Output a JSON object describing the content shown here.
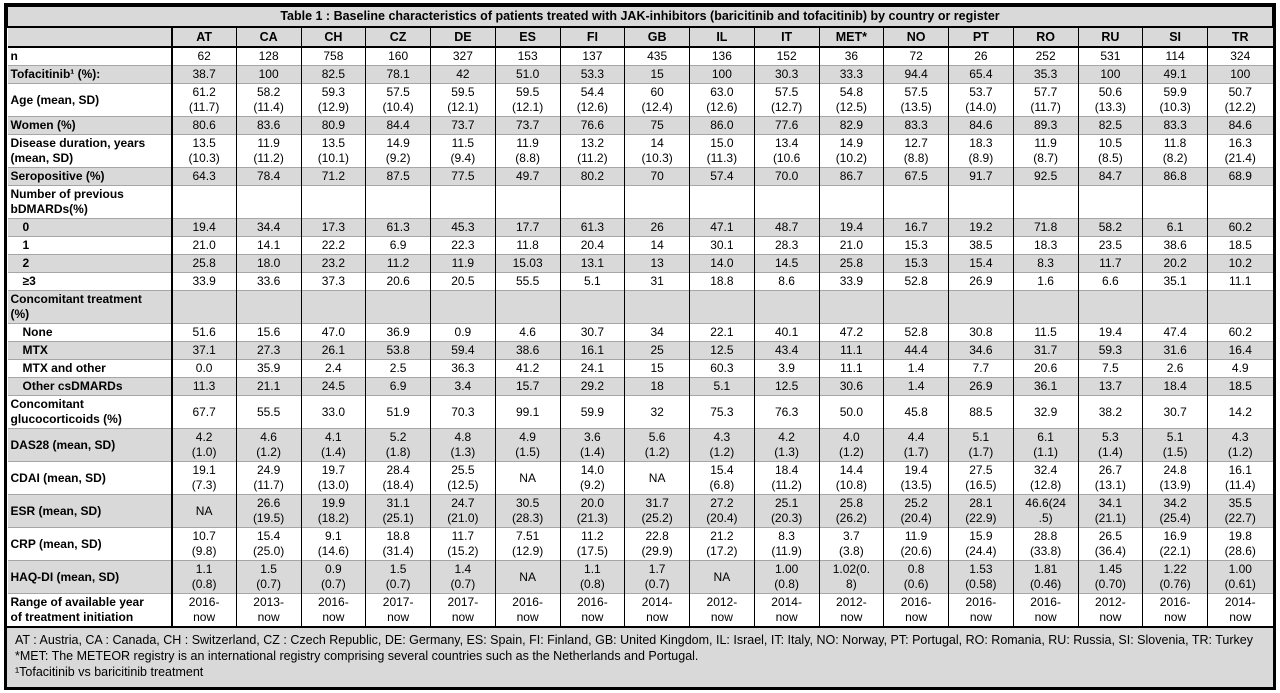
{
  "title": "Table 1 : Baseline characteristics of patients treated with JAK-inhibitors (baricitinib and tofacitinib) by country or register",
  "colors": {
    "shade": "#d9d9d9",
    "border": "#000000"
  },
  "table": {
    "columns": [
      "AT",
      "CA",
      "CH",
      "CZ",
      "DE",
      "ES",
      "FI",
      "GB",
      "IL",
      "IT",
      "MET*",
      "NO",
      "PT",
      "RO",
      "RU",
      "SI",
      "TR"
    ],
    "rows": [
      {
        "label": "n",
        "indent": false,
        "values": [
          "62",
          "128",
          "758",
          "160",
          "327",
          "153",
          "137",
          "435",
          "136",
          "152",
          "36",
          "72",
          "26",
          "252",
          "531",
          "114",
          "324"
        ]
      },
      {
        "label": "Tofacitinib¹ (%):",
        "indent": false,
        "values": [
          "38.7",
          "100",
          "82.5",
          "78.1",
          "42",
          "51.0",
          "53.3",
          "15",
          "100",
          "30.3",
          "33.3",
          "94.4",
          "65.4",
          "35.3",
          "100",
          "49.1",
          "100"
        ]
      },
      {
        "label": "Age (mean, SD)",
        "indent": false,
        "values": [
          "61.2\n(11.7)",
          "58.2\n(11.4)",
          "59.3\n(12.9)",
          "57.5\n(10.4)",
          "59.5\n(12.1)",
          "59.5\n(12.1)",
          "54.4\n(12.6)",
          "60\n(12.4)",
          "63.0\n(12.6)",
          "57.5\n(12.7)",
          "54.8\n(12.5)",
          "57.5\n(13.5)",
          "53.7\n(14.0)",
          "57.7\n(11.7)",
          "50.6\n(13.3)",
          "59.9\n(10.3)",
          "50.7\n(12.2)"
        ]
      },
      {
        "label": "Women (%)",
        "indent": false,
        "values": [
          "80.6",
          "83.6",
          "80.9",
          "84.4",
          "73.7",
          "73.7",
          "76.6",
          "75",
          "86.0",
          "77.6",
          "82.9",
          "83.3",
          "84.6",
          "89.3",
          "82.5",
          "83.3",
          "84.6"
        ]
      },
      {
        "label": "Disease duration, years\n(mean, SD)",
        "indent": false,
        "values": [
          "13.5\n(10.3)",
          "11.9\n(11.2)",
          "13.5\n(10.1)",
          "14.9\n(9.2)",
          "11.5\n(9.4)",
          "11.9\n(8.8)",
          "13.2\n(11.2)",
          "14\n(10.3)",
          "15.0\n(11.3)",
          "13.4\n(10.6",
          "14.9\n(10.2)",
          "12.7\n(8.8)",
          "18.3\n(8.9)",
          "11.9\n(8.7)",
          "10.5\n(8.5)",
          "11.8\n(8.2)",
          "16.3\n(21.4)"
        ]
      },
      {
        "label": "Seropositive (%)",
        "indent": false,
        "values": [
          "64.3",
          "78.4",
          "71.2",
          "87.5",
          "77.5",
          "49.7",
          "80.2",
          "70",
          "57.4",
          "70.0",
          "86.7",
          "67.5",
          "91.7",
          "92.5",
          "84.7",
          "86.8",
          "68.9"
        ]
      },
      {
        "label": "Number of previous\nbDMARDs(%)",
        "indent": false,
        "values": [
          "",
          "",
          "",
          "",
          "",
          "",
          "",
          "",
          "",
          "",
          "",
          "",
          "",
          "",
          "",
          "",
          ""
        ]
      },
      {
        "label": "0",
        "indent": true,
        "values": [
          "19.4",
          "34.4",
          "17.3",
          "61.3",
          "45.3",
          "17.7",
          "61.3",
          "26",
          "47.1",
          "48.7",
          "19.4",
          "16.7",
          "19.2",
          "71.8",
          "58.2",
          "6.1",
          "60.2"
        ]
      },
      {
        "label": "1",
        "indent": true,
        "values": [
          "21.0",
          "14.1",
          "22.2",
          "6.9",
          "22.3",
          "11.8",
          "20.4",
          "14",
          "30.1",
          "28.3",
          "21.0",
          "15.3",
          "38.5",
          "18.3",
          "23.5",
          "38.6",
          "18.5"
        ]
      },
      {
        "label": "2",
        "indent": true,
        "values": [
          "25.8",
          "18.0",
          "23.2",
          "11.2",
          "11.9",
          "15.03",
          "13.1",
          "13",
          "14.0",
          "14.5",
          "25.8",
          "15.3",
          "15.4",
          "8.3",
          "11.7",
          "20.2",
          "10.2"
        ]
      },
      {
        "label": "≥3",
        "indent": true,
        "values": [
          "33.9",
          "33.6",
          "37.3",
          "20.6",
          "20.5",
          "55.5",
          "5.1",
          "31",
          "18.8",
          "8.6",
          "33.9",
          "52.8",
          "26.9",
          "1.6",
          "6.6",
          "35.1",
          "11.1"
        ]
      },
      {
        "label": "Concomitant treatment\n(%)",
        "indent": false,
        "values": [
          "",
          "",
          "",
          "",
          "",
          "",
          "",
          "",
          "",
          "",
          "",
          "",
          "",
          "",
          "",
          "",
          ""
        ]
      },
      {
        "label": "None",
        "indent": true,
        "values": [
          "51.6",
          "15.6",
          "47.0",
          "36.9",
          "0.9",
          "4.6",
          "30.7",
          "34",
          "22.1",
          "40.1",
          "47.2",
          "52.8",
          "30.8",
          "11.5",
          "19.4",
          "47.4",
          "60.2"
        ]
      },
      {
        "label": "MTX",
        "indent": true,
        "values": [
          "37.1",
          "27.3",
          "26.1",
          "53.8",
          "59.4",
          "38.6",
          "16.1",
          "25",
          "12.5",
          "43.4",
          "11.1",
          "44.4",
          "34.6",
          "31.7",
          "59.3",
          "31.6",
          "16.4"
        ]
      },
      {
        "label": "MTX and other",
        "indent": true,
        "values": [
          "0.0",
          "35.9",
          "2.4",
          "2.5",
          "36.3",
          "41.2",
          "24.1",
          "15",
          "60.3",
          "3.9",
          "11.1",
          "1.4",
          "7.7",
          "20.6",
          "7.5",
          "2.6",
          "4.9"
        ]
      },
      {
        "label": "Other csDMARDs",
        "indent": true,
        "values": [
          "11.3",
          "21.1",
          "24.5",
          "6.9",
          "3.4",
          "15.7",
          "29.2",
          "18",
          "5.1",
          "12.5",
          "30.6",
          "1.4",
          "26.9",
          "36.1",
          "13.7",
          "18.4",
          "18.5"
        ]
      },
      {
        "label": "Concomitant\nglucocorticoids (%)",
        "indent": false,
        "values": [
          "67.7",
          "55.5",
          "33.0",
          "51.9",
          "70.3",
          "99.1",
          "59.9",
          "32",
          "75.3",
          "76.3",
          "50.0",
          "45.8",
          "88.5",
          "32.9",
          "38.2",
          "30.7",
          "14.2"
        ]
      },
      {
        "label": "DAS28 (mean, SD)",
        "indent": false,
        "values": [
          "4.2\n(1.0)",
          "4.6\n(1.2)",
          "4.1\n(1.4)",
          "5.2\n(1.8)",
          "4.8\n(1.3)",
          "4.9\n(1.5)",
          "3.6\n(1.4)",
          "5.6\n(1.2)",
          "4.3\n(1.2)",
          "4.2\n(1.3)",
          "4.0\n(1.2)",
          "4.4\n(1.7)",
          "5.1\n(1.7)",
          "6.1\n(1.1)",
          "5.3\n(1.4)",
          "5.1\n(1.5)",
          "4.3\n(1.2)"
        ]
      },
      {
        "label": "CDAI (mean, SD)",
        "indent": false,
        "values": [
          "19.1\n(7.3)",
          "24.9\n(11.7)",
          "19.7\n(13.0)",
          "28.4\n(18.4)",
          "25.5\n(12.5)",
          "NA",
          "14.0\n(9.2)",
          "NA",
          "15.4\n(6.8)",
          "18.4\n(11.2)",
          "14.4\n(10.8)",
          "19.4\n(13.5)",
          "27.5\n(16.5)",
          "32.4\n(12.8)",
          "26.7\n(13.1)",
          "24.8\n(13.9)",
          "16.1\n(11.4)"
        ]
      },
      {
        "label": "ESR (mean, SD)",
        "indent": false,
        "values": [
          "NA",
          "26.6\n(19.5)",
          "19.9\n(18.2)",
          "31.1\n(25.1)",
          "24.7\n(21.0)",
          "30.5\n(28.3)",
          "20.0\n(21.3)",
          "31.7\n(25.2)",
          "27.2\n(20.4)",
          "25.1\n(20.3)",
          "25.8\n(26.2)",
          "25.2\n(20.4)",
          "28.1\n(22.9)",
          "46.6(24\n.5)",
          "34.1\n(21.1)",
          "34.2\n(25.4)",
          "35.5\n(22.7)"
        ]
      },
      {
        "label": "CRP (mean, SD)",
        "indent": false,
        "values": [
          "10.7\n(9.8)",
          "15.4\n(25.0)",
          "9.1\n(14.6)",
          "18.8\n(31.4)",
          "11.7\n(15.2)",
          "7.51\n(12.9)",
          "11.2\n(17.5)",
          "22.8\n(29.9)",
          "21.2\n(17.2)",
          "8.3\n(11.9)",
          "3.7\n(3.8)",
          "11.9\n(20.6)",
          "15.9\n(24.4)",
          "28.8\n(33.8)",
          "26.5\n(36.4)",
          "16.9\n(22.1)",
          "19.8\n(28.6)"
        ]
      },
      {
        "label": "HAQ-DI (mean, SD)",
        "indent": false,
        "values": [
          "1.1\n(0.8)",
          "1.5\n(0.7)",
          "0.9\n(0.7)",
          "1.5\n(0.7)",
          "1.4\n(0.7)",
          "NA",
          "1.1\n(0.8)",
          "1.7\n(0.7)",
          "NA",
          "1.00\n(0.8)",
          "1.02(0.\n8)",
          "0.8\n(0.6)",
          "1.53\n(0.58)",
          "1.81\n(0.46)",
          "1.45\n(0.70)",
          "1.22\n(0.76)",
          "1.00\n(0.61)"
        ]
      },
      {
        "label": "Range of available year\nof treatment initiation",
        "indent": false,
        "values": [
          "2016-\nnow",
          "2013-\nnow",
          "2016-\nnow",
          "2017-\nnow",
          "2017-\nnow",
          "2016-\nnow",
          "2016-\nnow",
          "2014-\nnow",
          "2012-\nnow",
          "2014-\nnow",
          "2012-\nnow",
          "2016-\nnow",
          "2016-\nnow",
          "2016-\nnow",
          "2012-\nnow",
          "2016-\nnow",
          "2014-\nnow"
        ]
      }
    ]
  },
  "footnotes": [
    "AT : Austria, CA : Canada, CH : Switzerland, CZ : Czech Republic, DE: Germany, ES: Spain, FI: Finland, GB: United Kingdom, IL: Israel, IT: Italy, NO: Norway, PT: Portugal, RO: Romania, RU: Russia, SI: Slovenia, TR: Turkey",
    "*MET: The METEOR registry is an international registry comprising several countries such as the Netherlands and Portugal.",
    "¹Tofacitinib vs baricitinib treatment"
  ]
}
